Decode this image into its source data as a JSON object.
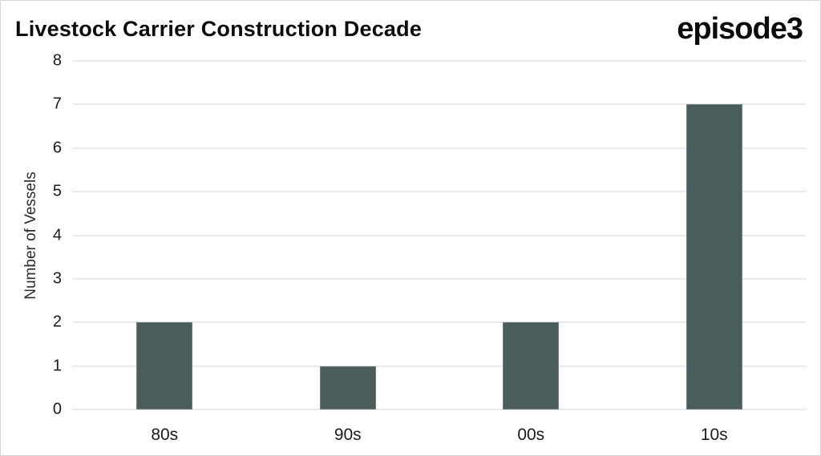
{
  "header": {
    "title": "Livestock Carrier Construction Decade",
    "logo_text": "episode3"
  },
  "chart_data": {
    "type": "bar",
    "title": "Livestock Carrier Construction Decade",
    "categories": [
      "80s",
      "90s",
      "00s",
      "10s"
    ],
    "values": [
      2,
      1,
      2,
      7
    ],
    "xlabel": "",
    "ylabel": "Number of Vessels",
    "ylim": [
      0,
      8
    ],
    "yticks": [
      0,
      1,
      2,
      3,
      4,
      5,
      6,
      7,
      8
    ],
    "grid": true,
    "legend": "none",
    "colors": {
      "bar": "#4b5c5c",
      "gridline": "#e9e9e9",
      "text": "#1a1a1a",
      "title": "#0c0c0c",
      "background": "#ffffff"
    }
  }
}
